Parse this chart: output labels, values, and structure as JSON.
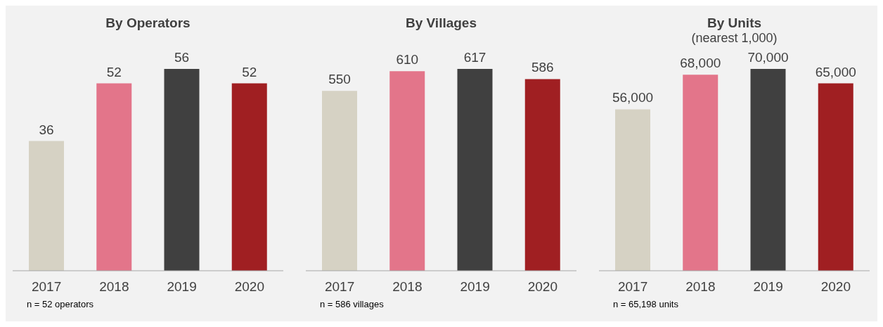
{
  "chart_data": [
    {
      "type": "bar",
      "title": "By Operators",
      "categories": [
        "2017",
        "2018",
        "2019",
        "2020"
      ],
      "values": [
        36,
        52,
        56,
        52
      ],
      "colors": [
        "#d6d2c4",
        "#e3758a",
        "#404040",
        "#a01f22"
      ],
      "data_labels": true,
      "annotations": [
        "n = 52 operators"
      ]
    },
    {
      "type": "bar",
      "title": "By Villages",
      "categories": [
        "2017",
        "2018",
        "2019",
        "2020"
      ],
      "values": [
        550,
        610,
        617,
        586
      ],
      "colors": [
        "#d6d2c4",
        "#e3758a",
        "#404040",
        "#a01f22"
      ],
      "data_labels": true,
      "annotations": [
        "n = 586 villages"
      ]
    },
    {
      "type": "bar",
      "title": "By Units",
      "subtitle": "(nearest 1,000)",
      "categories": [
        "2017",
        "2018",
        "2019",
        "2020"
      ],
      "values": [
        56000,
        68000,
        70000,
        65000
      ],
      "value_labels": [
        "56,000",
        "68,000",
        "70,000",
        "65,000"
      ],
      "colors": [
        "#d6d2c4",
        "#e3758a",
        "#404040",
        "#a01f22"
      ],
      "annotations": [
        "n = 65,198 units"
      ]
    }
  ]
}
